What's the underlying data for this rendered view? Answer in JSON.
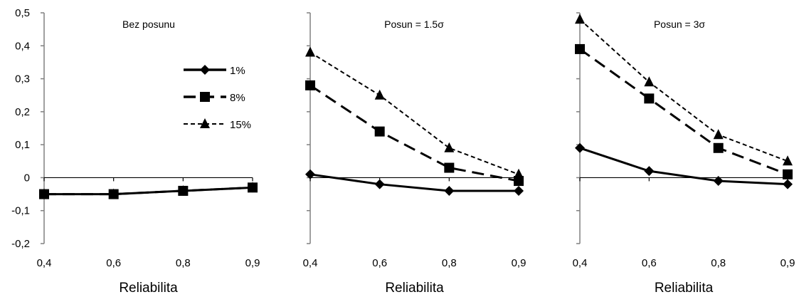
{
  "chart_data": [
    {
      "type": "line",
      "title": "Bez posunu",
      "xlabel": "Reliabilita",
      "ylabel": "",
      "x": [
        "0,4",
        "0,6",
        "0,8",
        "0,9"
      ],
      "y_ticks": [
        "0,5",
        "0,4",
        "0,3",
        "0,2",
        "0,1",
        "0",
        "-0,1",
        "-0,2"
      ],
      "ylim": [
        -0.2,
        0.5
      ],
      "grid": false,
      "legend": "inside-right",
      "series": [
        {
          "name": "1%",
          "values": [
            -0.05,
            -0.05,
            -0.04,
            -0.03
          ],
          "style": "solid",
          "marker": "diamond"
        },
        {
          "name": "8%",
          "values": [
            -0.05,
            -0.05,
            -0.04,
            -0.03
          ],
          "style": "long-dash",
          "marker": "square"
        },
        {
          "name": "15%",
          "values": [
            -0.05,
            -0.05,
            -0.04,
            -0.03
          ],
          "style": "short-dash",
          "marker": "triangle"
        }
      ]
    },
    {
      "type": "line",
      "title": "Posun = 1.5σ",
      "xlabel": "Reliabilita",
      "ylabel": "",
      "x": [
        "0,4",
        "0,6",
        "0,8",
        "0,9"
      ],
      "ylim": [
        -0.2,
        0.5
      ],
      "grid": false,
      "series": [
        {
          "name": "1%",
          "values": [
            0.01,
            -0.02,
            -0.04,
            -0.04
          ],
          "style": "solid",
          "marker": "diamond"
        },
        {
          "name": "8%",
          "values": [
            0.28,
            0.14,
            0.03,
            -0.01
          ],
          "style": "long-dash",
          "marker": "square"
        },
        {
          "name": "15%",
          "values": [
            0.38,
            0.25,
            0.09,
            0.01
          ],
          "style": "short-dash",
          "marker": "triangle"
        }
      ]
    },
    {
      "type": "line",
      "title": "Posun = 3σ",
      "xlabel": "Reliabilita",
      "ylabel": "",
      "x": [
        "0,4",
        "0,6",
        "0,8",
        "0,9"
      ],
      "ylim": [
        -0.2,
        0.5
      ],
      "grid": false,
      "series": [
        {
          "name": "1%",
          "values": [
            0.09,
            0.02,
            -0.01,
            -0.02
          ],
          "style": "solid",
          "marker": "diamond"
        },
        {
          "name": "8%",
          "values": [
            0.39,
            0.24,
            0.09,
            0.01
          ],
          "style": "long-dash",
          "marker": "square"
        },
        {
          "name": "15%",
          "values": [
            0.48,
            0.29,
            0.13,
            0.05
          ],
          "style": "short-dash",
          "marker": "triangle"
        }
      ]
    }
  ],
  "colors": {
    "line": "#000000",
    "axis": "#808080"
  }
}
